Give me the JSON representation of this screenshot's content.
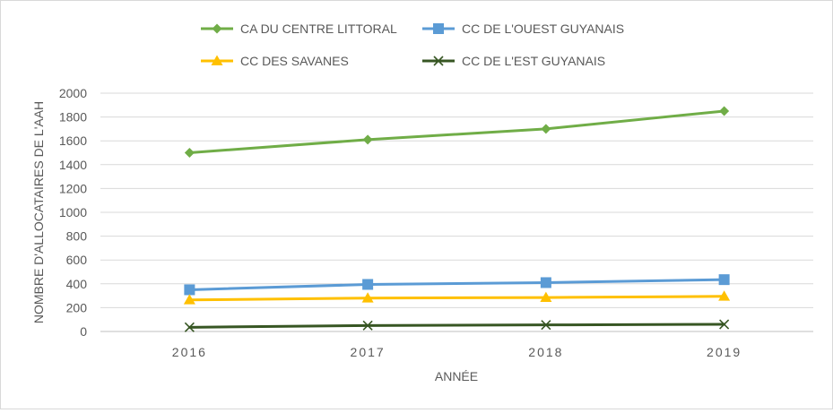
{
  "chart_data": {
    "type": "line",
    "x": [
      "2016",
      "2017",
      "2018",
      "2019"
    ],
    "series": [
      {
        "name": "CA DU CENTRE LITTORAL",
        "values": [
          1500,
          1610,
          1700,
          1850
        ],
        "color": "#70ad47",
        "marker": "diamond"
      },
      {
        "name": "CC DE L'OUEST GUYANAIS",
        "values": [
          350,
          395,
          410,
          435
        ],
        "color": "#5b9bd5",
        "marker": "square"
      },
      {
        "name": "CC DES SAVANES",
        "values": [
          265,
          280,
          285,
          295
        ],
        "color": "#ffc000",
        "marker": "triangle"
      },
      {
        "name": "CC DE L'EST GUYANAIS",
        "values": [
          35,
          50,
          55,
          60
        ],
        "color": "#375623",
        "marker": "x"
      }
    ],
    "xlabel": "ANNÉE",
    "ylabel": "NOMBRE D'ALLOCATAIRES DE L'AAH",
    "ylim": [
      0,
      2000
    ],
    "yticks": [
      "0",
      "200",
      "400",
      "600",
      "800",
      "1000",
      "1200",
      "1400",
      "1600",
      "1800",
      "2000"
    ],
    "grid": true,
    "legend_position": "top"
  }
}
